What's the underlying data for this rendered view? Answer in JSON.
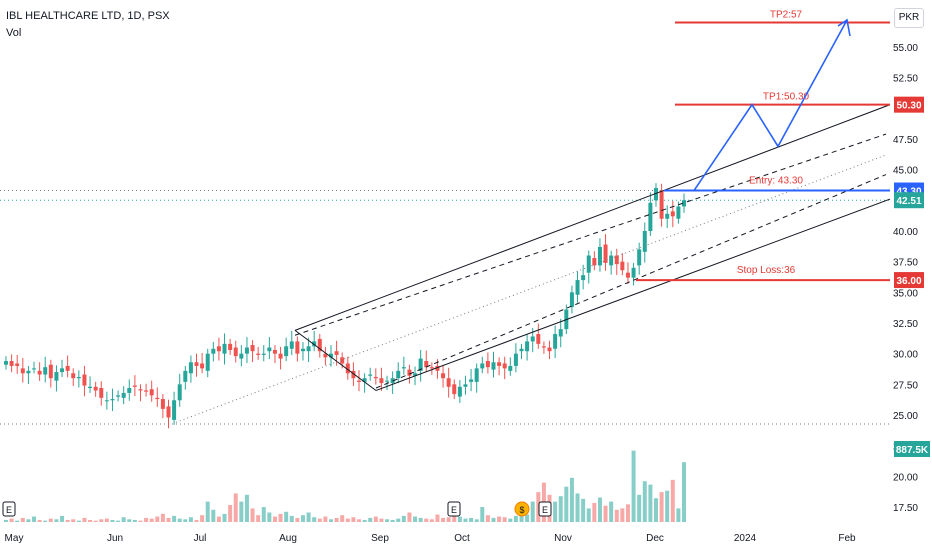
{
  "header": {
    "symbol_line": "IBL HEALTHCARE LTD, 1D, PSX",
    "volume_label": "Vol"
  },
  "currency": "PKR",
  "colors": {
    "up": "#26a69a",
    "down": "#ef5350",
    "blue": "#2962ff",
    "red_line": "#e53935",
    "channel": "#131722"
  },
  "chart_data": {
    "type": "candlestick",
    "title": "IBL HEALTHCARE LTD, 1D, PSX",
    "x_ticks": [
      "May",
      "Jun",
      "Jul",
      "Aug",
      "Sep",
      "Oct",
      "Nov",
      "Dec",
      "2024",
      "Feb"
    ],
    "y_ticks": [
      57.5,
      55.0,
      52.5,
      50.0,
      47.5,
      45.0,
      42.5,
      40.0,
      37.5,
      35.0,
      32.5,
      30.0,
      27.5,
      25.0,
      22.5,
      20.0,
      17.5
    ],
    "y_ticks_label": [
      "",
      "55.00",
      "52.50",
      "",
      "47.50",
      "45.00",
      "",
      "40.00",
      "37.50",
      "35.00",
      "32.50",
      "30.00",
      "27.50",
      "25.00",
      "22.50",
      "20.00",
      "17.50"
    ],
    "close_series": [
      29.4,
      29.0,
      29.0,
      28.4,
      28.6,
      28.8,
      28.3,
      28.9,
      28.0,
      28.5,
      28.8,
      28.6,
      28.0,
      28.1,
      27.4,
      27.3,
      27.0,
      26.4,
      26.2,
      26.3,
      26.6,
      26.8,
      27.2,
      27.3,
      27.0,
      26.9,
      26.6,
      26.3,
      25.5,
      24.8,
      26.2,
      27.5,
      28.6,
      29.3,
      29.0,
      28.8,
      30.0,
      30.4,
      30.2,
      30.8,
      30.3,
      29.8,
      30.0,
      30.5,
      30.2,
      29.9,
      30.0,
      30.5,
      30.0,
      29.6,
      30.6,
      31.0,
      30.0,
      30.4,
      30.6,
      31.0,
      30.2,
      29.7,
      30.0,
      29.9,
      29.2,
      28.4,
      28.0,
      27.7,
      28.0,
      28.3,
      28.0,
      27.6,
      27.8,
      28.0,
      28.6,
      28.9,
      28.2,
      28.4,
      29.6,
      28.9,
      28.8,
      28.6,
      28.0,
      27.3,
      26.7,
      27.3,
      27.5,
      27.9,
      28.8,
      29.2,
      28.9,
      29.3,
      29.0,
      28.8,
      29.0,
      30.0,
      30.4,
      31.0,
      31.4,
      30.8,
      30.5,
      30.2,
      31.6,
      32.0,
      33.6,
      35.0,
      36.0,
      36.4,
      38.0,
      37.2,
      38.7,
      37.4,
      38.0,
      37.3,
      36.8,
      36.2,
      37.0,
      38.5,
      40.0,
      42.3,
      43.5,
      41.0,
      41.4,
      41.2,
      42.0,
      42.51
    ],
    "channel": {
      "upper_start": 31.9,
      "upper_end": 50.3,
      "lower_start": 24.4,
      "lower_end": 42.6
    },
    "ylim": [
      16.5,
      58.5
    ],
    "annotations": {
      "tp2": {
        "label": "TP2:57",
        "price": 57.0
      },
      "tp1": {
        "label": "TP1:50.30",
        "price": 50.3
      },
      "entry": {
        "label": "Entry: 43.30",
        "price": 43.3
      },
      "stop": {
        "label": "Stop Loss:36",
        "price": 36.0
      }
    },
    "price_badges": [
      {
        "label": "50.30",
        "price": 50.3,
        "color": "#e53935"
      },
      {
        "label": "43.30",
        "price": 43.3,
        "color": "#2962ff"
      },
      {
        "label": "42.51",
        "price": 42.51,
        "color": "#26a69a"
      },
      {
        "label": "36.00",
        "price": 36.0,
        "color": "#e53935"
      }
    ],
    "volume_badge": {
      "label": "887.5K",
      "color": "#26a69a"
    },
    "event_markers": [
      "E",
      "E",
      "E",
      "$"
    ]
  }
}
